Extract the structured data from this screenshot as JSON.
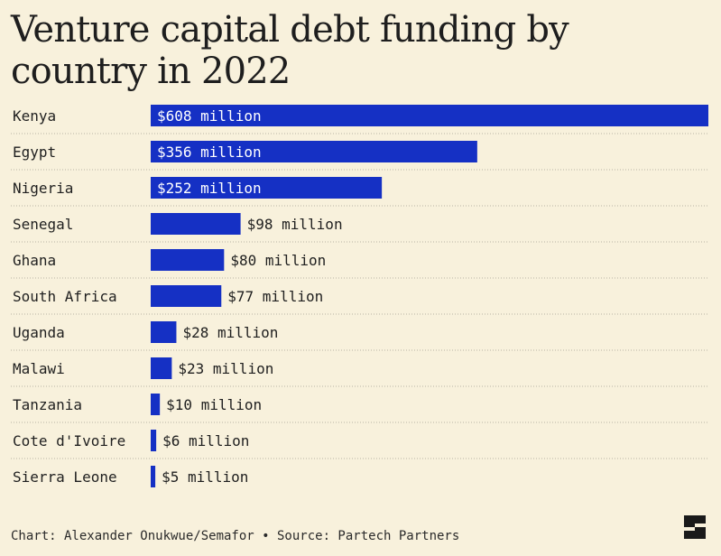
{
  "title": "Venture capital debt funding by country in 2022",
  "footer": "Chart: Alexander Onukwue/Semafor • Source: Partech Partners",
  "colors": {
    "background": "#f8f1dc",
    "bar": "#1530c4",
    "divider": "#b9b4a4",
    "text": "#1f1f1f"
  },
  "chart_data": {
    "type": "bar",
    "orientation": "horizontal",
    "title": "Venture capital debt funding by country in 2022",
    "xlabel": "",
    "ylabel": "",
    "unit": "million USD",
    "categories": [
      "Kenya",
      "Egypt",
      "Nigeria",
      "Senegal",
      "Ghana",
      "South Africa",
      "Uganda",
      "Malawi",
      "Tanzania",
      "Cote d'Ivoire",
      "Sierra Leone"
    ],
    "values": [
      608,
      356,
      252,
      98,
      80,
      77,
      28,
      23,
      10,
      6,
      5
    ],
    "data_labels": [
      "$608 million",
      "$356 million",
      "$252 million",
      "$98 million",
      "$80 million",
      "$77 million",
      "$28 million",
      "$23 million",
      "$10 million",
      "$6 million",
      "$5 million"
    ],
    "xlim": [
      0,
      608
    ],
    "grid": false,
    "legend": "none"
  }
}
